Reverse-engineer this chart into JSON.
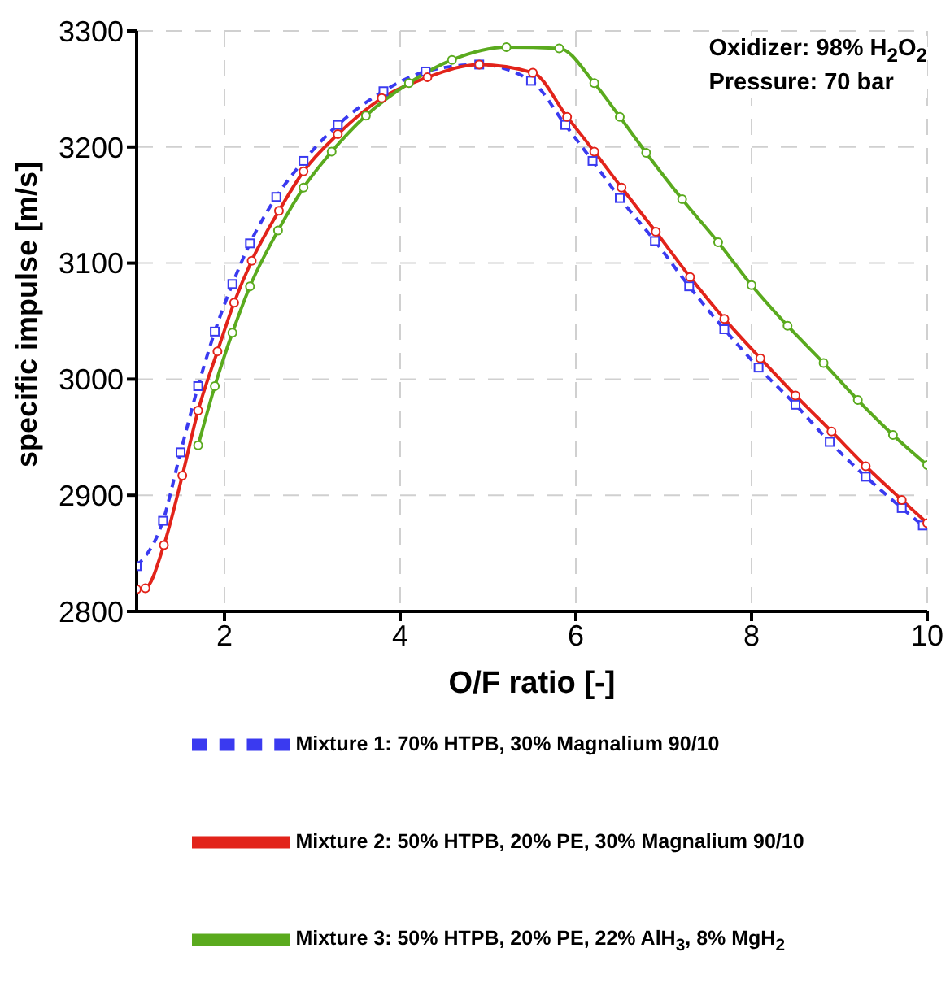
{
  "chart_data": {
    "type": "line",
    "xlabel": "O/F ratio [-]",
    "ylabel": "specific impulse [m/s]",
    "annotations": [
      "Oxidizer: 98% H$_{2}$O$_{2}$",
      "Pressure: 70 bar"
    ],
    "xlim": [
      1,
      10
    ],
    "xticks": [
      2,
      4,
      6,
      8,
      10
    ],
    "ylim": [
      2800,
      3300
    ],
    "yticks": [
      2800,
      2900,
      3000,
      3100,
      3200,
      3300
    ],
    "grid": true,
    "legend": "bottom",
    "series": [
      {
        "name": "Mixture 1: 70% HTPB, 30% Magnalium 90/10",
        "color": "#3a3af0",
        "marker": "square",
        "line_style": "dashed",
        "x": [
          1,
          1.3,
          1.5,
          1.7,
          1.89,
          2.09,
          2.29,
          2.59,
          2.9,
          3.29,
          3.81,
          4.29,
          4.9,
          5.49,
          5.88,
          6.19,
          6.5,
          6.9,
          7.29,
          7.69,
          8.08,
          8.5,
          8.89,
          9.3,
          9.71,
          9.95
        ],
        "values": [
          2839,
          2878,
          2937,
          2994,
          3041,
          3082,
          3117,
          3157,
          3188,
          3219,
          3248,
          3265,
          3271,
          3257,
          3219,
          3188,
          3156,
          3119,
          3080,
          3043,
          3010,
          2978,
          2946,
          2916,
          2889,
          2874
        ]
      },
      {
        "name": "Mixture 2: 50% HTPB, 20% PE, 30% Magnalium 90/10",
        "color": "#e2231a",
        "marker": "circle",
        "line_style": "solid",
        "x": [
          1,
          1.1,
          1.31,
          1.52,
          1.7,
          1.92,
          2.11,
          2.31,
          2.62,
          2.9,
          3.29,
          3.79,
          4.31,
          4.9,
          5.51,
          5.9,
          6.21,
          6.52,
          6.91,
          7.3,
          7.69,
          8.1,
          8.5,
          8.91,
          9.3,
          9.71,
          10
        ],
        "values": [
          2819,
          2820,
          2857,
          2917,
          2973,
          3024,
          3066,
          3102,
          3145,
          3179,
          3211,
          3242,
          3260,
          3271,
          3264,
          3226,
          3196,
          3165,
          3127,
          3088,
          3052,
          3018,
          2986,
          2955,
          2925,
          2896,
          2876
        ]
      },
      {
        "name": "Mixture 3: 50% HTPB, 20% PE, 22% AlH$_{3}$, 8% MgH$_{2}$",
        "color": "#5aaa1e",
        "marker": "circle",
        "line_style": "solid",
        "x": [
          1.7,
          1.89,
          2.09,
          2.29,
          2.61,
          2.9,
          3.22,
          3.61,
          4.1,
          4.59,
          5.21,
          5.81,
          6.21,
          6.5,
          6.8,
          7.21,
          7.62,
          8,
          8.41,
          8.82,
          9.21,
          9.61,
          10
        ],
        "values": [
          2943,
          2994,
          3040,
          3080,
          3128,
          3165,
          3196,
          3227,
          3255,
          3275,
          3286,
          3285,
          3255,
          3226,
          3195,
          3155,
          3118,
          3081,
          3046,
          3014,
          2982,
          2952,
          2926
        ]
      }
    ]
  }
}
